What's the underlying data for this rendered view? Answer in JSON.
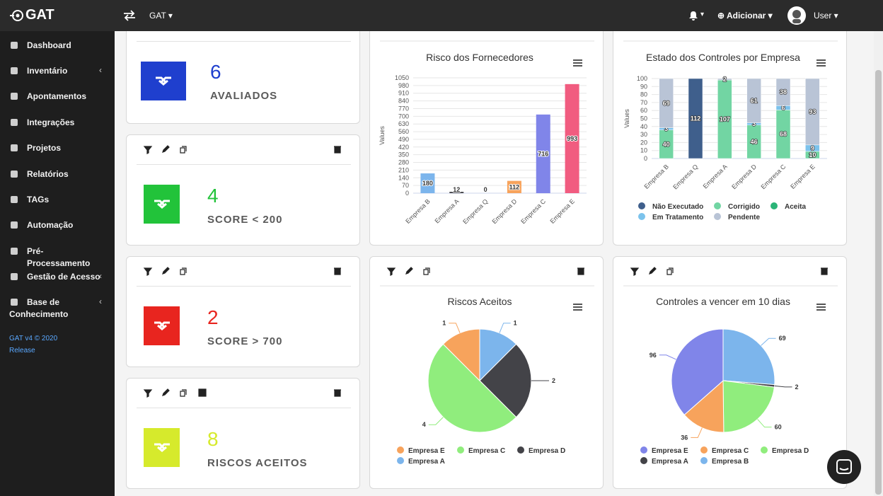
{
  "topbar": {
    "logo": "GAT",
    "project": "GAT",
    "add": "Adicionar",
    "user": "User"
  },
  "sidebar": {
    "items": [
      "Dashboard",
      "Inventário",
      "Apontamentos",
      "Integrações",
      "Projetos",
      "Relatórios",
      "TAGs",
      "Automação",
      "Pré-Processamento",
      "Gestão de Acesso",
      "Base de Conhecimento"
    ],
    "version": "GAT v4 © 2020",
    "release": "Release"
  },
  "cards": [
    {
      "value": 6,
      "label": "AVALIADOS",
      "color": "#1f3fce"
    },
    {
      "value": 4,
      "label": "SCORE < 200",
      "color": "#22c33a"
    },
    {
      "value": 2,
      "label": "SCORE > 700",
      "color": "#e8251f"
    },
    {
      "value": 8,
      "label": "RISCOS ACEITOS",
      "color": "#d6ea2c"
    }
  ],
  "chart_data": [
    {
      "type": "bar",
      "title": "Risco dos Fornecedores",
      "y_label": "Values",
      "categories": [
        "Empresa B",
        "Empresa A",
        "Empresa Q",
        "Empresa D",
        "Empresa C",
        "Empresa E"
      ],
      "values": [
        180,
        12,
        0,
        112,
        716,
        993
      ],
      "colors": [
        "#7cb5ec",
        "#434348",
        "#90ed7d",
        "#f7a35c",
        "#8085e9",
        "#f15c80"
      ],
      "ylim": [
        0,
        1050
      ],
      "yticks": [
        0,
        70,
        140,
        210,
        280,
        350,
        420,
        490,
        560,
        630,
        700,
        770,
        840,
        910,
        980,
        1050
      ],
      "grid": true
    },
    {
      "type": "stacked_percent_bar",
      "title": "Estado dos Controles por Empresa",
      "y_label": "Values",
      "categories": [
        "Empresa B",
        "Empresa Q",
        "Empresa A",
        "Empresa D",
        "Empresa C",
        "Empresa E"
      ],
      "series": [
        {
          "name": "Não Executado",
          "color": "#3f5f8c",
          "values": [
            0,
            112,
            0,
            0,
            0,
            0
          ]
        },
        {
          "name": "Corrigido",
          "color": "#72d5a3",
          "values": [
            40,
            0,
            107,
            46,
            68,
            10
          ]
        },
        {
          "name": "Aceita",
          "color": "#2bb477",
          "values": [
            0,
            0,
            0,
            0,
            0,
            0
          ]
        },
        {
          "name": "Em Tratamento",
          "color": "#7cc3ec",
          "values": [
            3,
            0,
            0,
            3,
            6,
            9
          ]
        },
        {
          "name": "Pendente",
          "color": "#b9c4d6",
          "values": [
            69,
            0,
            2,
            61,
            38,
            93
          ]
        }
      ],
      "ylim": [
        0,
        100
      ],
      "yticks": [
        0,
        10,
        20,
        30,
        40,
        50,
        60,
        70,
        80,
        90,
        100
      ],
      "grid": true
    },
    {
      "type": "pie",
      "title": "Riscos Aceitos",
      "categories": [
        "Empresa E",
        "Empresa C",
        "Empresa D",
        "Empresa A"
      ],
      "values": [
        1,
        4,
        2,
        1
      ],
      "colors": [
        "#f7a35c",
        "#90ed7d",
        "#434348",
        "#7cb5ec"
      ]
    },
    {
      "type": "pie",
      "title": "Controles a vencer em 10 dias",
      "categories": [
        "Empresa E",
        "Empresa C",
        "Empresa D",
        "Empresa A",
        "Empresa B"
      ],
      "values": [
        96,
        36,
        60,
        2,
        69
      ],
      "colors": [
        "#8085e9",
        "#f7a35c",
        "#90ed7d",
        "#434348",
        "#7cb5ec"
      ]
    }
  ]
}
